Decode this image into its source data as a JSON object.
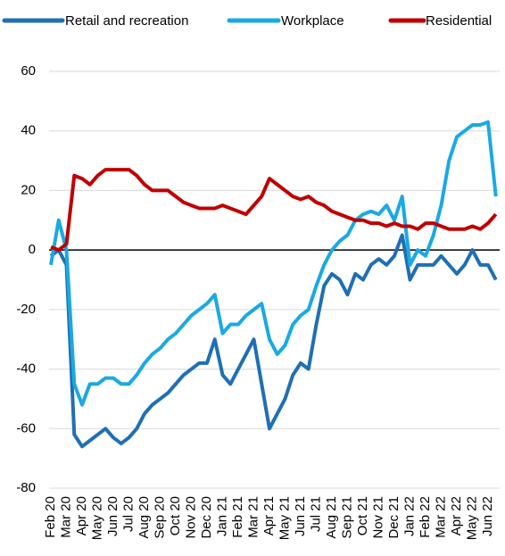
{
  "chart_data": {
    "type": "line",
    "categories": [
      "Feb 20",
      null,
      "Mar 20",
      null,
      "Apr 20",
      null,
      "May 20",
      null,
      "Jun 20",
      null,
      "Jul 20",
      null,
      "Aug 20",
      null,
      "Sep 20",
      null,
      "Oct 20",
      null,
      "Nov 20",
      null,
      "Dec 20",
      null,
      "Jan 21",
      null,
      "Feb 21",
      null,
      "Mar 21",
      null,
      "Apr 21",
      null,
      "May 21",
      null,
      "Jun 21",
      null,
      "Jul 21",
      null,
      "Aug 21",
      null,
      "Sep 21",
      null,
      "Oct 21",
      null,
      "Nov 21",
      null,
      "Dec 21",
      null,
      "Jan 22",
      null,
      "Feb 22",
      null,
      "Mar 22",
      null,
      "Apr 22",
      null,
      "May 22",
      null,
      "Jun 22",
      null
    ],
    "series": [
      {
        "name": "Retail and recreation",
        "color": "#1f6fb5",
        "values": [
          -2,
          0,
          -5,
          -62,
          -66,
          -64,
          -62,
          -60,
          -63,
          -65,
          -63,
          -60,
          -55,
          -52,
          -50,
          -48,
          -45,
          -42,
          -40,
          -38,
          -38,
          -30,
          -42,
          -45,
          -40,
          -35,
          -30,
          -45,
          -60,
          -55,
          -50,
          -42,
          -38,
          -40,
          -25,
          -12,
          -8,
          -10,
          -15,
          -8,
          -10,
          -5,
          -3,
          -5,
          -2,
          5,
          -10,
          -5,
          -5,
          -5,
          -2,
          -5,
          -8,
          -5,
          0,
          -5,
          -5,
          -10
        ]
      },
      {
        "name": "Workplace",
        "color": "#1aa9e3",
        "values": [
          -5,
          10,
          0,
          -45,
          -52,
          -45,
          -45,
          -43,
          -43,
          -45,
          -45,
          -42,
          -38,
          -35,
          -33,
          -30,
          -28,
          -25,
          -22,
          -20,
          -18,
          -15,
          -28,
          -25,
          -25,
          -22,
          -20,
          -18,
          -30,
          -35,
          -32,
          -25,
          -22,
          -20,
          -12,
          -5,
          0,
          3,
          5,
          10,
          12,
          13,
          12,
          15,
          10,
          18,
          -5,
          0,
          -2,
          5,
          15,
          30,
          38,
          40,
          42,
          42,
          43,
          18
        ]
      },
      {
        "name": "Residential",
        "color": "#c00000",
        "values": [
          1,
          0,
          2,
          25,
          24,
          22,
          25,
          27,
          27,
          27,
          27,
          25,
          22,
          20,
          20,
          20,
          18,
          16,
          15,
          14,
          14,
          14,
          15,
          14,
          13,
          12,
          15,
          18,
          24,
          22,
          20,
          18,
          17,
          18,
          16,
          15,
          13,
          12,
          11,
          10,
          10,
          9,
          9,
          8,
          9,
          8,
          8,
          7,
          9,
          9,
          8,
          7,
          7,
          7,
          8,
          7,
          9,
          12
        ]
      }
    ],
    "ylim": [
      -80,
      60
    ],
    "yticks": [
      -80,
      -60,
      -40,
      -20,
      0,
      20,
      40,
      60
    ],
    "grid": true
  }
}
